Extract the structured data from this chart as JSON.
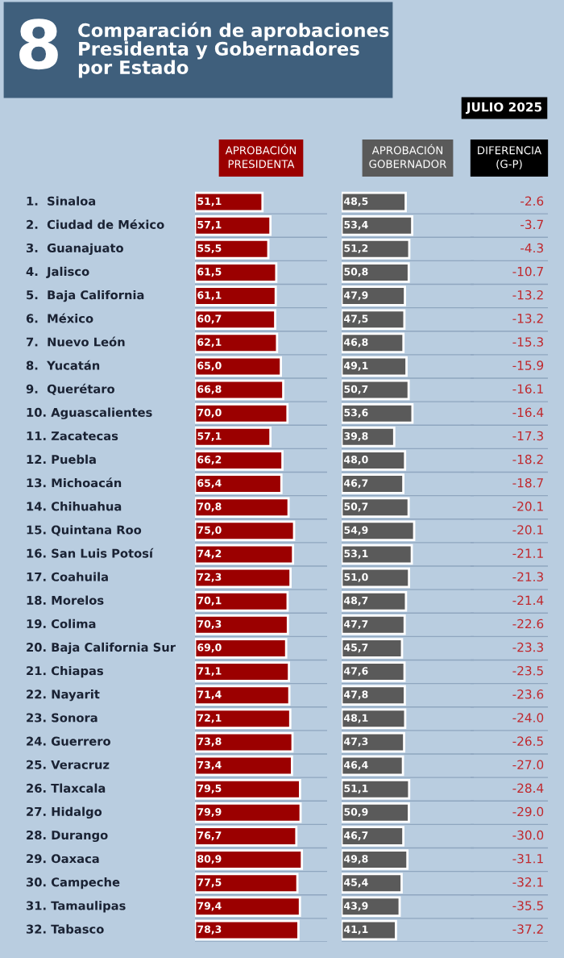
{
  "chart_data": [
    {
      "type": "bar",
      "orientation": "horizontal",
      "title": "Comparación de aprobaciones\nPresidenta y Gobernadores\npor Estado",
      "annotations": [
        "8",
        "JULIO 2025"
      ],
      "subtitle": "APROBACIÓN\nPRESIDENTA",
      "categories": [
        "1.  Sinaloa",
        "2.  Ciudad de México",
        "3.  Guanajuato",
        "4.  Jalisco",
        "5.  Baja California",
        "6.  México",
        "7.  Nuevo León",
        "8.  Yucatán",
        "9.  Querétaro",
        "10. Aguascalientes",
        "11. Zacatecas",
        "12. Puebla",
        "13. Michoacán",
        "14. Chihuahua",
        "15. Quintana Roo",
        "16. San Luis Potosí",
        "17. Coahuila",
        "18. Morelos",
        "19. Colima",
        "20. Baja California Sur",
        "21. Chiapas",
        "22. Nayarit",
        "23. Sonora",
        "24. Guerrero",
        "25. Veracruz",
        "26. Tlaxcala",
        "27. Hidalgo",
        "28. Durango",
        "29. Oaxaca",
        "30. Campeche",
        "31. Tamaulipas",
        "32. Tabasco"
      ],
      "values": [
        51.1,
        57.1,
        55.5,
        61.5,
        61.1,
        60.7,
        62.1,
        65.0,
        66.8,
        70.0,
        57.1,
        66.2,
        65.4,
        70.8,
        75.0,
        74.2,
        72.3,
        70.1,
        70.3,
        69.0,
        71.1,
        71.4,
        72.1,
        73.8,
        73.4,
        79.5,
        79.9,
        76.7,
        80.9,
        77.5,
        79.4,
        78.3
      ],
      "value_labels": [
        "51,1",
        "57,1",
        "55,5",
        "61,5",
        "61,1",
        "60,7",
        "62,1",
        "65,0",
        "66,8",
        "70,0",
        "57,1",
        "66,2",
        "65,4",
        "70,8",
        "75,0",
        "74,2",
        "72,3",
        "70,1",
        "70,3",
        "69,0",
        "71,1",
        "71,4",
        "72,1",
        "73,8",
        "73,4",
        "79,5",
        "79,9",
        "76,7",
        "80,9",
        "77,5",
        "79,4",
        "78,3"
      ],
      "color": "#9b0000",
      "xlim": [
        0,
        100
      ],
      "tick_labels": "y"
    },
    {
      "type": "bar",
      "orientation": "horizontal",
      "subtitle": "APROBACIÓN\nGOBERNADOR",
      "categories": [
        null,
        null,
        null,
        null,
        null,
        null,
        null,
        null,
        null,
        null,
        null,
        null,
        null,
        null,
        null,
        null,
        null,
        null,
        null,
        null,
        null,
        null,
        null,
        null,
        null,
        null,
        null,
        null,
        null,
        null,
        null,
        null
      ],
      "values": [
        48.5,
        53.4,
        51.2,
        50.8,
        47.9,
        47.5,
        46.8,
        49.1,
        50.7,
        53.6,
        39.8,
        48.0,
        46.7,
        50.7,
        54.9,
        53.1,
        51.0,
        48.7,
        47.7,
        45.7,
        47.6,
        47.8,
        48.1,
        47.3,
        46.4,
        51.1,
        50.9,
        46.7,
        49.8,
        45.4,
        43.9,
        41.1
      ],
      "value_labels": [
        "48,5",
        "53,4",
        "51,2",
        "50,8",
        "47,9",
        "47,5",
        "46,8",
        "49,1",
        "50,7",
        "53,6",
        "39,8",
        "48,0",
        "46,7",
        "50,7",
        "54,9",
        "53,1",
        "51,0",
        "48,7",
        "47,7",
        "45,7",
        "47,6",
        "47,8",
        "48,1",
        "47,3",
        "46,4",
        "51,1",
        "50,9",
        "46,7",
        "49,8",
        "45,4",
        "43,9",
        "41,1"
      ],
      "color": "#5a5a5a",
      "xlim": [
        0,
        100
      ],
      "tick_labels": false
    },
    {
      "type": "other",
      "subtitle": "DIFERENCIA\n(G-P)",
      "categories": [
        null,
        null,
        null,
        null,
        null,
        null,
        null,
        null,
        null,
        null,
        null,
        null,
        null,
        null,
        null,
        null,
        null,
        null,
        null,
        null,
        null,
        null,
        null,
        null,
        null,
        null,
        null,
        null,
        null,
        null,
        null,
        null
      ],
      "values": [
        -2.6,
        -3.7,
        -4.3,
        -10.7,
        -13.2,
        -13.2,
        -15.3,
        -15.9,
        -16.1,
        -16.4,
        -17.3,
        -18.2,
        -18.7,
        -20.1,
        -20.1,
        -21.1,
        -21.3,
        -21.4,
        -22.6,
        -23.3,
        -23.5,
        -23.6,
        -24.0,
        -26.5,
        -27.0,
        -28.4,
        -29.0,
        -30.0,
        -31.1,
        -32.1,
        -35.5,
        -37.2
      ],
      "value_labels": [
        "-2.6",
        "-3.7",
        "-4.3",
        "-10.7",
        "-13.2",
        "-13.2",
        "-15.3",
        "-15.9",
        "-16.1",
        "-16.4",
        "-17.3",
        "-18.2",
        "-18.7",
        "-20.1",
        "-20.1",
        "-21.1",
        "-21.3",
        "-21.4",
        "-22.6",
        "-23.3",
        "-23.5",
        "-23.6",
        "-24.0",
        "-26.5",
        "-27.0",
        "-28.4",
        "-29.0",
        "-30.0",
        "-31.1",
        "-32.1",
        "-35.5",
        "-37.2"
      ],
      "color": "#c0282d"
    }
  ]
}
